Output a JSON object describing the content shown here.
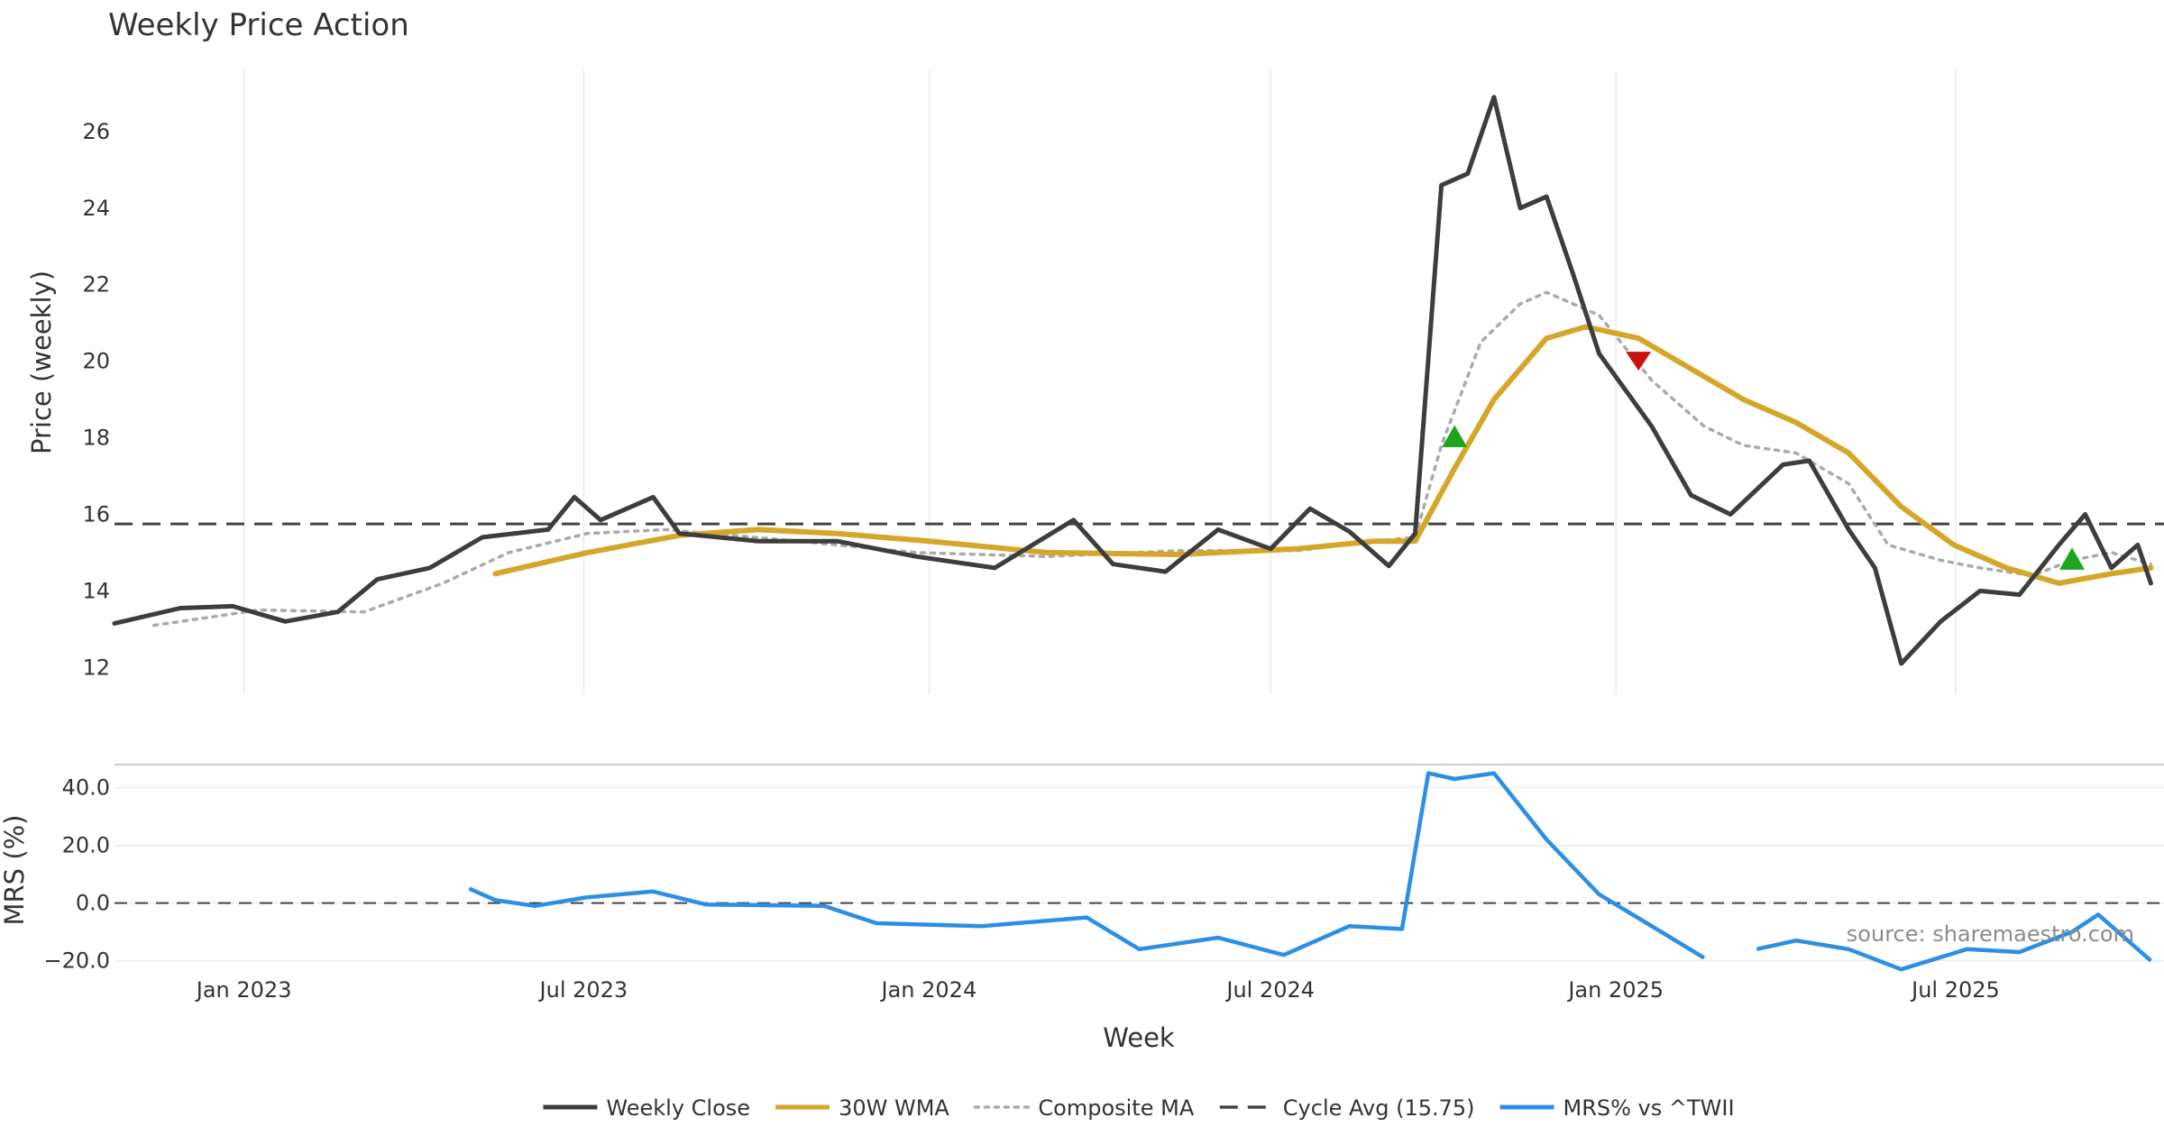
{
  "chart_data": {
    "type": "line",
    "title": "Weekly Price Action",
    "source": "source: sharemaestro.com",
    "xlabel": "Week",
    "x_ticks": [
      "Jan 2023",
      "Jul 2023",
      "Jan 2024",
      "Jul 2024",
      "Jan 2025",
      "Jul 2025"
    ],
    "x_range": [
      "2022-10-24",
      "2025-10-13"
    ],
    "grid": true,
    "legend_position": "bottom-center",
    "price_panel": {
      "ylabel": "Price (weekly)",
      "ylim": [
        11.3,
        27.6
      ],
      "y_ticks": [
        12,
        14,
        16,
        18,
        20,
        22,
        24,
        26
      ],
      "cycle_avg": 15.75,
      "series": [
        {
          "name": "Weekly Close",
          "color": "#3d3d3d",
          "points": [
            [
              "2022-10-24",
              13.15
            ],
            [
              "2022-11-28",
              13.55
            ],
            [
              "2022-12-26",
              13.6
            ],
            [
              "2023-01-23",
              13.2
            ],
            [
              "2023-02-20",
              13.45
            ],
            [
              "2023-03-13",
              14.3
            ],
            [
              "2023-04-10",
              14.6
            ],
            [
              "2023-05-08",
              15.4
            ],
            [
              "2023-06-12",
              15.6
            ],
            [
              "2023-06-26",
              16.45
            ],
            [
              "2023-07-10",
              15.85
            ],
            [
              "2023-08-07",
              16.45
            ],
            [
              "2023-08-21",
              15.5
            ],
            [
              "2023-10-02",
              15.3
            ],
            [
              "2023-11-13",
              15.3
            ],
            [
              "2023-12-25",
              14.9
            ],
            [
              "2024-02-05",
              14.6
            ],
            [
              "2024-03-18",
              15.85
            ],
            [
              "2024-04-08",
              14.7
            ],
            [
              "2024-05-06",
              14.5
            ],
            [
              "2024-06-03",
              15.6
            ],
            [
              "2024-07-01",
              15.1
            ],
            [
              "2024-07-22",
              16.15
            ],
            [
              "2024-08-12",
              15.55
            ],
            [
              "2024-09-02",
              14.65
            ],
            [
              "2024-09-16",
              15.5
            ],
            [
              "2024-09-30",
              24.6
            ],
            [
              "2024-10-14",
              24.9
            ],
            [
              "2024-10-28",
              26.9
            ],
            [
              "2024-11-11",
              24.0
            ],
            [
              "2024-11-25",
              24.3
            ],
            [
              "2024-12-09",
              22.3
            ],
            [
              "2024-12-23",
              20.2
            ],
            [
              "2025-01-20",
              18.3
            ],
            [
              "2025-02-10",
              16.5
            ],
            [
              "2025-03-03",
              16.0
            ],
            [
              "2025-03-31",
              17.3
            ],
            [
              "2025-04-14",
              17.4
            ],
            [
              "2025-05-05",
              15.6
            ],
            [
              "2025-05-19",
              14.6
            ],
            [
              "2025-06-02",
              12.1
            ],
            [
              "2025-06-23",
              13.2
            ],
            [
              "2025-07-14",
              14.0
            ],
            [
              "2025-08-04",
              13.9
            ],
            [
              "2025-08-25",
              15.2
            ],
            [
              "2025-09-08",
              16.0
            ],
            [
              "2025-09-22",
              14.6
            ],
            [
              "2025-10-06",
              15.2
            ],
            [
              "2025-10-13",
              14.2
            ]
          ]
        },
        {
          "name": "30W WMA",
          "color": "#d4a62a",
          "points": [
            [
              "2023-05-15",
              14.45
            ],
            [
              "2023-07-03",
              15.0
            ],
            [
              "2023-08-21",
              15.45
            ],
            [
              "2023-10-02",
              15.6
            ],
            [
              "2023-11-13",
              15.5
            ],
            [
              "2024-01-01",
              15.3
            ],
            [
              "2024-03-04",
              15.0
            ],
            [
              "2024-05-13",
              14.95
            ],
            [
              "2024-07-15",
              15.1
            ],
            [
              "2024-08-26",
              15.3
            ],
            [
              "2024-09-16",
              15.3
            ],
            [
              "2024-10-07",
              17.2
            ],
            [
              "2024-10-28",
              19.0
            ],
            [
              "2024-11-25",
              20.6
            ],
            [
              "2024-12-16",
              20.9
            ],
            [
              "2025-01-13",
              20.6
            ],
            [
              "2025-02-10",
              19.8
            ],
            [
              "2025-03-10",
              19.0
            ],
            [
              "2025-04-07",
              18.4
            ],
            [
              "2025-05-05",
              17.6
            ],
            [
              "2025-06-02",
              16.2
            ],
            [
              "2025-06-30",
              15.2
            ],
            [
              "2025-07-28",
              14.6
            ],
            [
              "2025-08-25",
              14.2
            ],
            [
              "2025-09-22",
              14.45
            ],
            [
              "2025-10-13",
              14.6
            ]
          ]
        },
        {
          "name": "Composite MA",
          "color": "#aaaaaa",
          "points": [
            [
              "2022-11-14",
              13.1
            ],
            [
              "2023-01-09",
              13.5
            ],
            [
              "2023-03-06",
              13.45
            ],
            [
              "2023-04-17",
              14.2
            ],
            [
              "2023-05-22",
              15.0
            ],
            [
              "2023-07-03",
              15.5
            ],
            [
              "2023-08-14",
              15.6
            ],
            [
              "2023-10-23",
              15.3
            ],
            [
              "2023-12-25",
              15.0
            ],
            [
              "2024-03-04",
              14.9
            ],
            [
              "2024-05-13",
              15.05
            ],
            [
              "2024-07-15",
              15.05
            ],
            [
              "2024-08-26",
              15.3
            ],
            [
              "2024-09-16",
              15.4
            ],
            [
              "2024-09-30",
              17.8
            ],
            [
              "2024-10-21",
              20.5
            ],
            [
              "2024-11-11",
              21.5
            ],
            [
              "2024-11-25",
              21.8
            ],
            [
              "2024-12-23",
              21.2
            ],
            [
              "2025-01-20",
              19.5
            ],
            [
              "2025-02-17",
              18.3
            ],
            [
              "2025-03-10",
              17.8
            ],
            [
              "2025-04-07",
              17.6
            ],
            [
              "2025-05-05",
              16.8
            ],
            [
              "2025-05-26",
              15.2
            ],
            [
              "2025-06-23",
              14.8
            ],
            [
              "2025-07-14",
              14.6
            ],
            [
              "2025-08-11",
              14.4
            ],
            [
              "2025-09-01",
              14.8
            ],
            [
              "2025-09-22",
              15.0
            ],
            [
              "2025-10-13",
              14.7
            ]
          ]
        }
      ],
      "signals": [
        {
          "type": "buy",
          "date": "2024-10-07",
          "value": 18.0,
          "color": "#1ea51e"
        },
        {
          "type": "sell",
          "date": "2025-01-13",
          "value": 20.0,
          "color": "#cc1111"
        },
        {
          "type": "buy",
          "date": "2025-09-01",
          "value": 14.8,
          "color": "#1ea51e"
        }
      ]
    },
    "mrs_panel": {
      "ylabel": "MRS (%)",
      "ylim": [
        -22,
        48
      ],
      "y_ticks": [
        -20.0,
        0.0,
        20.0,
        40.0
      ],
      "y_tick_labels": [
        "−20.0",
        "0.0",
        "20.0",
        "40.0"
      ],
      "zero_line": 0.0,
      "series": [
        {
          "name": "MRS% vs ^TWII",
          "color": "#2b8fe5",
          "segments": [
            [
              [
                "2023-05-01",
                5.0
              ],
              [
                "2023-05-15",
                1.0
              ],
              [
                "2023-06-05",
                -1.0
              ],
              [
                "2023-07-03",
                2.0
              ],
              [
                "2023-08-07",
                4.0
              ],
              [
                "2023-09-04",
                -0.5
              ],
              [
                "2023-11-06",
                -1.0
              ],
              [
                "2023-12-04",
                -7.0
              ],
              [
                "2024-01-29",
                -8.0
              ],
              [
                "2024-03-25",
                -5.0
              ],
              [
                "2024-04-22",
                -16.0
              ],
              [
                "2024-06-03",
                -12.0
              ],
              [
                "2024-07-08",
                -18.0
              ],
              [
                "2024-08-12",
                -8.0
              ],
              [
                "2024-09-09",
                -9.0
              ],
              [
                "2024-09-23",
                45.0
              ],
              [
                "2024-10-07",
                43.0
              ],
              [
                "2024-10-28",
                45.0
              ],
              [
                "2024-11-25",
                22.0
              ],
              [
                "2024-12-23",
                3.0
              ],
              [
                "2025-01-20",
                -8.0
              ],
              [
                "2025-02-17",
                -19.0
              ]
            ],
            [
              [
                "2025-03-17",
                -16.0
              ],
              [
                "2025-04-07",
                -13.0
              ],
              [
                "2025-05-05",
                -16.0
              ],
              [
                "2025-06-02",
                -23.0
              ],
              [
                "2025-07-07",
                -16.0
              ],
              [
                "2025-08-04",
                -17.0
              ],
              [
                "2025-09-01",
                -10.0
              ],
              [
                "2025-09-15",
                -4.0
              ],
              [
                "2025-10-13",
                -20.0
              ]
            ]
          ]
        }
      ]
    },
    "legend": [
      {
        "label": "Weekly Close",
        "color": "#3d3d3d",
        "style": "solid"
      },
      {
        "label": "30W WMA",
        "color": "#d4a62a",
        "style": "solid"
      },
      {
        "label": "Composite MA",
        "color": "#aaaaaa",
        "style": "dotted"
      },
      {
        "label": "Cycle Avg (15.75)",
        "color": "#444444",
        "style": "dashed"
      },
      {
        "label": "MRS% vs ^TWII",
        "color": "#2b8fe5",
        "style": "solid"
      }
    ]
  }
}
